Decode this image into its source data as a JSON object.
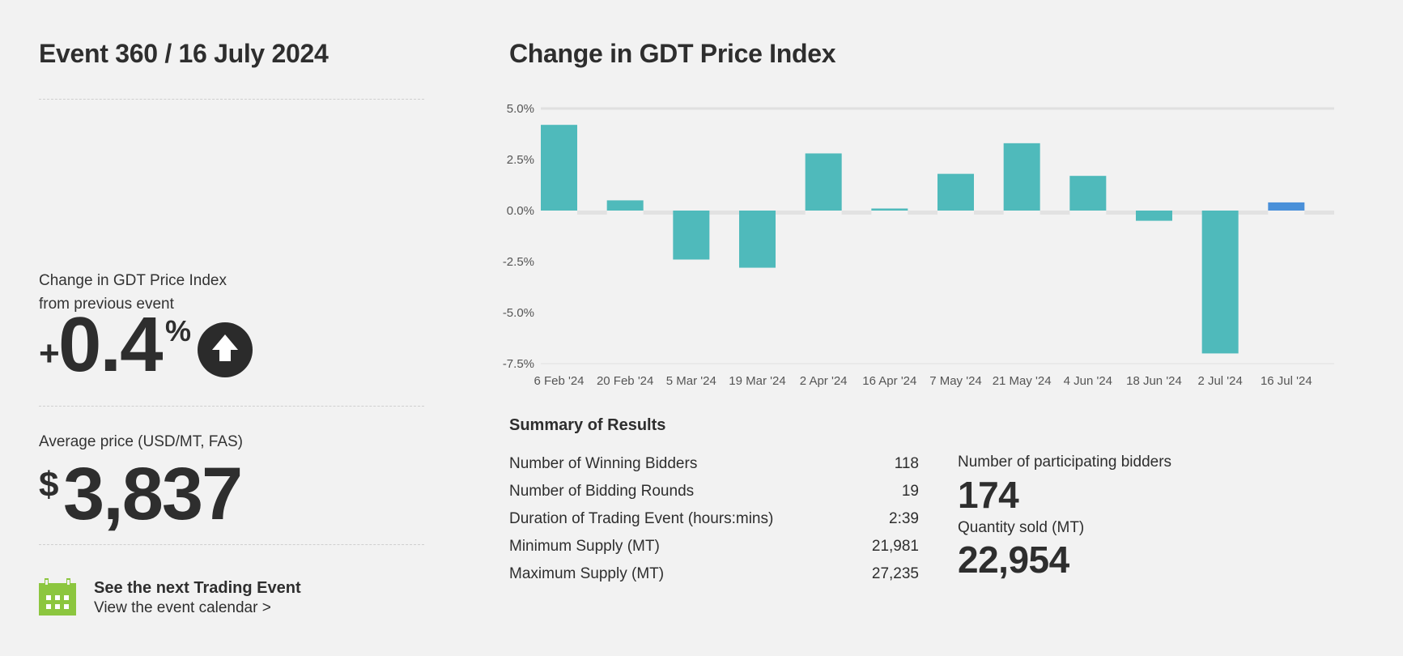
{
  "event": {
    "title": "Event 360 / 16 July 2024"
  },
  "change": {
    "label_line1": "Change in GDT Price Index",
    "label_line2": "from previous event",
    "sign": "+",
    "value": "0.4",
    "unit": "%",
    "direction_icon": "arrow-up-icon"
  },
  "average_price": {
    "label": "Average price (USD/MT, FAS)",
    "currency": "$",
    "value": "3,837"
  },
  "next_event": {
    "icon": "calendar-icon",
    "title": "See the next Trading Event",
    "link": "View the event calendar >"
  },
  "chart": {
    "title": "Change in GDT Price Index"
  },
  "chart_data": {
    "type": "bar",
    "title": "Change in GDT Price Index",
    "categories": [
      "6 Feb '24",
      "20 Feb '24",
      "5 Mar '24",
      "19 Mar '24",
      "2 Apr '24",
      "16 Apr '24",
      "7 May '24",
      "21 May '24",
      "4 Jun '24",
      "18 Jun '24",
      "2 Jul '24",
      "16 Jul '24"
    ],
    "values": [
      4.2,
      0.5,
      -2.4,
      -2.8,
      2.8,
      0.1,
      1.8,
      3.3,
      1.7,
      -0.5,
      -7.0,
      0.4
    ],
    "ylim": [
      -7.5,
      5.0
    ],
    "yticks": [
      "5.0%",
      "2.5%",
      "0.0%",
      "-2.5%",
      "-5.0%",
      "-7.5%"
    ],
    "ytick_values": [
      5.0,
      2.5,
      0.0,
      -2.5,
      -5.0,
      -7.5
    ],
    "colors": {
      "bar": "#4fbabb",
      "latest": "#4a90d9",
      "gap": "#e2e2e2",
      "axis": "#e0e0e0"
    },
    "grid": false,
    "legend": "none"
  },
  "summary": {
    "title": "Summary of Results",
    "rows": [
      {
        "label": "Number of Winning Bidders",
        "value": "118"
      },
      {
        "label": "Number of Bidding Rounds",
        "value": "19"
      },
      {
        "label": "Duration of Trading Event (hours:mins)",
        "value": "2:39"
      },
      {
        "label": "Minimum Supply (MT)",
        "value": "21,981"
      },
      {
        "label": "Maximum Supply (MT)",
        "value": "27,235"
      }
    ],
    "participating_label": "Number of participating bidders",
    "participating_value": "174",
    "quantity_label": "Quantity sold (MT)",
    "quantity_value": "22,954"
  }
}
